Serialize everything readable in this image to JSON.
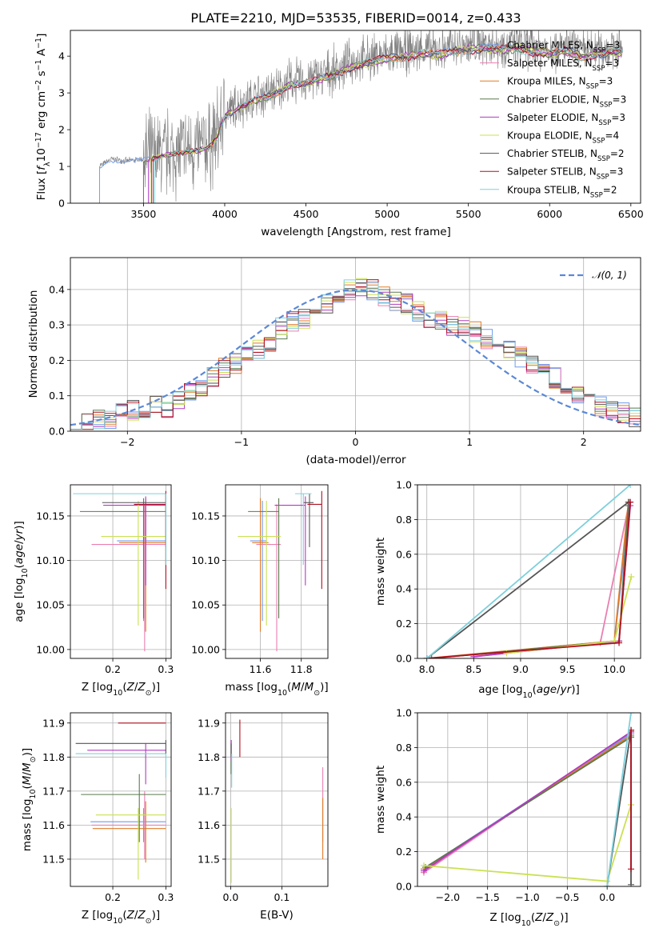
{
  "title": "PLATE=2210, MJD=53535, FIBERID=0014, z=0.433",
  "colors": {
    "Chabrier MILES": "#6f9bef",
    "Salpeter MILES": "#ea7fb0",
    "Kroupa MILES": "#e07b28",
    "Chabrier ELODIE": "#5a7a4e",
    "Salpeter ELODIE": "#b03bc0",
    "Kroupa ELODIE": "#cbe053",
    "Chabrier STELIB": "#555555",
    "Salpeter STELIB": "#b01020",
    "Kroupa STELIB": "#7dd0dc",
    "data": "#808080",
    "normal": "#5b88d6"
  },
  "chart_data": [
    {
      "id": "spectrum",
      "type": "line",
      "xlabel": "wavelength [Angstrom, rest frame]",
      "ylabel": "Flux [f_λ 10^-17 erg cm^-2 s^-1 A^-1]",
      "xlim": [
        3050,
        6560
      ],
      "ylim": [
        0,
        4.7
      ],
      "xticks": [
        3500,
        4000,
        4500,
        5000,
        5500,
        6000,
        6500
      ],
      "yticks": [
        0,
        1,
        2,
        3,
        4
      ],
      "legend_position": "upper right",
      "legend": [
        {
          "name": "Chabrier MILES",
          "nssp": "3"
        },
        {
          "name": "Salpeter MILES",
          "nssp": "3"
        },
        {
          "name": "Kroupa MILES",
          "nssp": "3"
        },
        {
          "name": "Chabrier ELODIE",
          "nssp": "3"
        },
        {
          "name": "Salpeter ELODIE",
          "nssp": "3"
        },
        {
          "name": "Kroupa ELODIE",
          "nssp": "4"
        },
        {
          "name": "Chabrier STELIB",
          "nssp": "2"
        },
        {
          "name": "Salpeter STELIB",
          "nssp": "3"
        },
        {
          "name": "Kroupa STELIB",
          "nssp": "2"
        }
      ],
      "continuum": {
        "x": [
          3250,
          3300,
          3400,
          3500,
          3600,
          3700,
          3800,
          3900,
          3950,
          4000,
          4100,
          4200,
          4300,
          4400,
          4500,
          4600,
          4700,
          4800,
          4900,
          5000,
          5100,
          5200,
          5300,
          5400,
          5500,
          5600,
          5700,
          5800,
          5900,
          6000,
          6100,
          6200,
          6300,
          6450
        ],
        "y": [
          1.05,
          1.2,
          1.15,
          1.2,
          1.3,
          1.4,
          1.45,
          1.55,
          1.8,
          2.45,
          2.7,
          2.9,
          3.05,
          3.3,
          3.35,
          3.5,
          3.65,
          3.85,
          3.95,
          4.05,
          4.1,
          4.2,
          4.15,
          4.25,
          4.3,
          4.35,
          4.3,
          4.35,
          4.25,
          4.2,
          4.25,
          4.1,
          4.2,
          4.25
        ]
      },
      "data_start_x": [
        3230,
        3500,
        3550,
        3500,
        3530,
        3540,
        3550,
        3560,
        3570
      ]
    },
    {
      "id": "residuals",
      "type": "line",
      "xlabel": "(data-model)/error",
      "ylabel": "Normed distribution",
      "xlim": [
        -2.5,
        2.5
      ],
      "ylim": [
        0,
        0.49
      ],
      "xticks": [
        -2,
        -1,
        0,
        1,
        2
      ],
      "yticks": [
        0.0,
        0.1,
        0.2,
        0.3,
        0.4
      ],
      "legend": "𝒩(0, 1)",
      "bins": 50,
      "histogram_centers": [
        0.025,
        0.02,
        0.03,
        0.035,
        0.05,
        0.06,
        0.055,
        0.07,
        0.06,
        0.09,
        0.105,
        0.13,
        0.15,
        0.18,
        0.19,
        0.21,
        0.23,
        0.25,
        0.29,
        0.31,
        0.32,
        0.34,
        0.36,
        0.38,
        0.4,
        0.41,
        0.4,
        0.38,
        0.37,
        0.36,
        0.34,
        0.32,
        0.31,
        0.3,
        0.3,
        0.28,
        0.26,
        0.25,
        0.23,
        0.21,
        0.19,
        0.17,
        0.15,
        0.12,
        0.1,
        0.08,
        0.07,
        0.06,
        0.05,
        0.04
      ]
    },
    {
      "id": "age_vs_Z",
      "type": "scatter",
      "xlabel": "Z [log10(Z/Z⊙)]",
      "ylabel": "age  [log10(age/yr)]",
      "xlim": [
        0.12,
        0.31
      ],
      "ylim": [
        9.99,
        10.185
      ],
      "xticks": [
        0.2,
        0.3
      ],
      "yticks": [
        10.0,
        10.05,
        10.1,
        10.15
      ],
      "points": [
        {
          "s": "Chabrier MILES",
          "x": 0.258,
          "y": 10.122,
          "xerr": [
            0.05,
            0.042
          ],
          "yerr": [
            0.09,
            0.045
          ]
        },
        {
          "s": "Salpeter MILES",
          "x": 0.26,
          "y": 10.118,
          "xerr": [
            0.1,
            0.04
          ],
          "yerr": [
            0.12,
            0.045
          ]
        },
        {
          "s": "Kroupa MILES",
          "x": 0.262,
          "y": 10.12,
          "xerr": [
            0.05,
            0.038
          ],
          "yerr": [
            0.1,
            0.05
          ]
        },
        {
          "s": "Chabrier ELODIE",
          "x": 0.258,
          "y": 10.155,
          "xerr": [
            0.12,
            0.042
          ],
          "yerr": [
            0.12,
            0.015
          ]
        },
        {
          "s": "Salpeter ELODIE",
          "x": 0.262,
          "y": 10.162,
          "xerr": [
            0.08,
            0.038
          ],
          "yerr": [
            0.09,
            0.01
          ]
        },
        {
          "s": "Kroupa ELODIE",
          "x": 0.248,
          "y": 10.127,
          "xerr": [
            0.07,
            0.052
          ],
          "yerr": [
            0.1,
            0.04
          ]
        },
        {
          "s": "Chabrier STELIB",
          "x": 0.3,
          "y": 10.165,
          "xerr": [
            0.12,
            0.0
          ],
          "yerr": [
            0.05,
            0.01
          ]
        },
        {
          "s": "Salpeter STELIB",
          "x": 0.3,
          "y": 10.163,
          "xerr": [
            0.06,
            0.0
          ],
          "yerr": [
            0.095,
            0.015
          ]
        },
        {
          "s": "Kroupa STELIB",
          "x": 0.3,
          "y": 10.175,
          "xerr": [
            0.175,
            0.0
          ],
          "yerr": [
            0.08,
            0.0
          ]
        }
      ]
    },
    {
      "id": "age_vs_mass",
      "type": "scatter",
      "xlabel": "mass [log10(M/M⊙)]",
      "ylabel": "",
      "xlim": [
        11.43,
        11.93
      ],
      "ylim": [
        9.99,
        10.185
      ],
      "xticks": [
        11.6,
        11.8
      ],
      "yticks": [
        10.0,
        10.05,
        10.1,
        10.15
      ],
      "points": [
        {
          "s": "Chabrier MILES",
          "x": 11.61,
          "y": 10.122,
          "xerr": [
            0.06,
            0.02
          ],
          "yerr": [
            0.09,
            0.045
          ]
        },
        {
          "s": "Salpeter MILES",
          "x": 11.68,
          "y": 10.118,
          "xerr": [
            0.1,
            0.02
          ],
          "yerr": [
            0.12,
            0.045
          ]
        },
        {
          "s": "Kroupa MILES",
          "x": 11.6,
          "y": 10.12,
          "xerr": [
            0.04,
            0.04
          ],
          "yerr": [
            0.1,
            0.05
          ]
        },
        {
          "s": "Chabrier ELODIE",
          "x": 11.69,
          "y": 10.155,
          "xerr": [
            0.15,
            0.0
          ],
          "yerr": [
            0.12,
            0.015
          ]
        },
        {
          "s": "Salpeter ELODIE",
          "x": 11.82,
          "y": 10.162,
          "xerr": [
            0.15,
            0.0
          ],
          "yerr": [
            0.09,
            0.01
          ]
        },
        {
          "s": "Kroupa ELODIE",
          "x": 11.63,
          "y": 10.127,
          "xerr": [
            0.14,
            0.07
          ],
          "yerr": [
            0.1,
            0.04
          ]
        },
        {
          "s": "Chabrier STELIB",
          "x": 11.84,
          "y": 10.165,
          "xerr": [
            0.03,
            0.02
          ],
          "yerr": [
            0.05,
            0.01
          ]
        },
        {
          "s": "Salpeter STELIB",
          "x": 11.9,
          "y": 10.163,
          "xerr": [
            0.07,
            0.0
          ],
          "yerr": [
            0.095,
            0.015
          ]
        },
        {
          "s": "Kroupa STELIB",
          "x": 11.81,
          "y": 10.175,
          "xerr": [
            0.04,
            0.04
          ],
          "yerr": [
            0.08,
            0.0
          ]
        }
      ]
    },
    {
      "id": "massweight_vs_age",
      "type": "line",
      "xlabel": "age  [log10(age/yr)]",
      "ylabel": "mass weight",
      "xlim": [
        7.9,
        10.28
      ],
      "ylim": [
        0,
        1.0
      ],
      "xticks": [
        8.0,
        8.5,
        9.0,
        9.5,
        10.0
      ],
      "yticks": [
        0.0,
        0.2,
        0.4,
        0.6,
        0.8,
        1.0
      ],
      "series": [
        {
          "s": "Chabrier MILES",
          "x": [
            8.05,
            10.0,
            10.17
          ],
          "y": [
            0.0,
            0.1,
            0.9
          ]
        },
        {
          "s": "Salpeter MILES",
          "x": [
            8.5,
            9.85,
            10.16
          ],
          "y": [
            0.01,
            0.09,
            0.9
          ]
        },
        {
          "s": "Kroupa MILES",
          "x": [
            8.0,
            10.0,
            10.15
          ],
          "y": [
            0.0,
            0.1,
            0.9
          ]
        },
        {
          "s": "Chabrier ELODIE",
          "x": [
            8.05,
            10.05,
            10.15
          ],
          "y": [
            0.0,
            0.1,
            0.88
          ]
        },
        {
          "s": "Salpeter ELODIE",
          "x": [
            8.5,
            10.05,
            10.17
          ],
          "y": [
            0.01,
            0.1,
            0.88
          ]
        },
        {
          "s": "Kroupa ELODIE",
          "x": [
            8.85,
            10.0,
            10.18
          ],
          "y": [
            0.03,
            0.1,
            0.47
          ]
        },
        {
          "s": "Chabrier STELIB",
          "x": [
            8.0,
            10.15
          ],
          "y": [
            0.0,
            0.9
          ]
        },
        {
          "s": "Salpeter STELIB",
          "x": [
            8.0,
            10.05,
            10.17
          ],
          "y": [
            0.0,
            0.09,
            0.9
          ]
        },
        {
          "s": "Kroupa STELIB",
          "x": [
            8.0,
            10.17
          ],
          "y": [
            0.0,
            1.0
          ]
        }
      ]
    },
    {
      "id": "mass_vs_Z",
      "type": "scatter",
      "xlabel": "Z [log10(Z/Z⊙)]",
      "ylabel": "mass [log10(M/M⊙)]",
      "xlim": [
        0.12,
        0.31
      ],
      "ylim": [
        11.42,
        11.93
      ],
      "xticks": [
        0.2,
        0.3
      ],
      "yticks": [
        11.5,
        11.6,
        11.7,
        11.8,
        11.9
      ],
      "points": [
        {
          "s": "Chabrier MILES",
          "x": 0.258,
          "y": 11.61,
          "xerr": [
            0.1,
            0.042
          ],
          "yerr": [
            0.06,
            0.04
          ]
        },
        {
          "s": "Salpeter MILES",
          "x": 0.26,
          "y": 11.6,
          "xerr": [
            0.1,
            0.04
          ],
          "yerr": [
            0.1,
            0.1
          ]
        },
        {
          "s": "Kroupa MILES",
          "x": 0.262,
          "y": 11.59,
          "xerr": [
            0.1,
            0.038
          ],
          "yerr": [
            0.1,
            0.08
          ]
        },
        {
          "s": "Chabrier ELODIE",
          "x": 0.25,
          "y": 11.69,
          "xerr": [
            0.11,
            0.05
          ],
          "yerr": [
            0.14,
            0.06
          ]
        },
        {
          "s": "Salpeter ELODIE",
          "x": 0.262,
          "y": 11.82,
          "xerr": [
            0.11,
            0.038
          ],
          "yerr": [
            0.1,
            0.02
          ]
        },
        {
          "s": "Kroupa ELODIE",
          "x": 0.248,
          "y": 11.63,
          "xerr": [
            0.08,
            0.052
          ],
          "yerr": [
            0.19,
            0.02
          ]
        },
        {
          "s": "Chabrier STELIB",
          "x": 0.3,
          "y": 11.84,
          "xerr": [
            0.17,
            0.0
          ],
          "yerr": [
            0.03,
            0.01
          ]
        },
        {
          "s": "Salpeter STELIB",
          "x": 0.3,
          "y": 11.9,
          "xerr": [
            0.09,
            0.0
          ],
          "yerr": [
            0.0,
            0.0
          ]
        },
        {
          "s": "Kroupa STELIB",
          "x": 0.3,
          "y": 11.81,
          "xerr": [
            0.17,
            0.0
          ],
          "yerr": [
            0.07,
            0.0
          ]
        }
      ]
    },
    {
      "id": "mass_vs_EBV",
      "type": "scatter",
      "xlabel": "E(B-V)",
      "ylabel": "",
      "xlim": [
        -0.01,
        0.19
      ],
      "ylim": [
        11.42,
        11.93
      ],
      "xticks": [
        0.0,
        0.1
      ],
      "yticks": [
        11.5,
        11.6,
        11.7,
        11.8,
        11.9
      ],
      "points": [
        {
          "s": "Chabrier MILES",
          "x": 0.001,
          "y": 11.8,
          "xerr": [
            0.0,
            0.0
          ],
          "yerr": [
            0.04,
            0.05
          ]
        },
        {
          "s": "Salpeter MILES",
          "x": 0.18,
          "y": 11.65,
          "xerr": [
            0.0,
            0.0
          ],
          "yerr": [
            0.1,
            0.12
          ]
        },
        {
          "s": "Kroupa MILES",
          "x": 0.18,
          "y": 11.6,
          "xerr": [
            0.0,
            0.0
          ],
          "yerr": [
            0.1,
            0.08
          ]
        },
        {
          "s": "Chabrier ELODIE",
          "x": 0.001,
          "y": 11.8,
          "xerr": [
            0.0,
            0.0
          ],
          "yerr": [
            0.05,
            0.05
          ]
        },
        {
          "s": "Salpeter ELODIE",
          "x": 0.001,
          "y": 11.82,
          "xerr": [
            0.0,
            0.0
          ],
          "yerr": [
            0.03,
            0.03
          ]
        },
        {
          "s": "Kroupa ELODIE",
          "x": 0.001,
          "y": 11.6,
          "xerr": [
            0.0,
            0.0
          ],
          "yerr": [
            0.17,
            0.05
          ]
        },
        {
          "s": "Chabrier STELIB",
          "x": 0.001,
          "y": 11.82,
          "xerr": [
            0.0,
            0.0
          ],
          "yerr": [
            0.02,
            0.02
          ]
        },
        {
          "s": "Salpeter STELIB",
          "x": 0.018,
          "y": 11.85,
          "xerr": [
            0.0,
            0.0
          ],
          "yerr": [
            0.05,
            0.06
          ]
        },
        {
          "s": "Kroupa STELIB",
          "x": 0.002,
          "y": 11.76,
          "xerr": [
            0.0,
            0.0
          ],
          "yerr": [
            0.05,
            0.05
          ]
        }
      ]
    },
    {
      "id": "massweight_vs_Z",
      "type": "line",
      "xlabel": "Z [log10(Z/Z⊙)]",
      "ylabel": "mass weight",
      "xlim": [
        -2.38,
        0.42
      ],
      "ylim": [
        0,
        1.0
      ],
      "xticks": [
        -2.0,
        -1.5,
        -1.0,
        -0.5,
        0.0
      ],
      "yticks": [
        0.0,
        0.2,
        0.4,
        0.6,
        0.8,
        1.0
      ],
      "series": [
        {
          "s": "Chabrier MILES",
          "x": [
            -2.3,
            0.3
          ],
          "y": [
            0.1,
            0.88
          ]
        },
        {
          "s": "Salpeter MILES",
          "x": [
            -2.3,
            0.3
          ],
          "y": [
            0.08,
            0.89
          ]
        },
        {
          "s": "Kroupa MILES",
          "x": [
            -2.3,
            0.3
          ],
          "y": [
            0.1,
            0.87
          ]
        },
        {
          "s": "Chabrier ELODIE",
          "x": [
            -2.28,
            0.3
          ],
          "y": [
            0.11,
            0.86
          ]
        },
        {
          "s": "Salpeter ELODIE",
          "x": [
            -2.3,
            0.3
          ],
          "y": [
            0.09,
            0.89
          ]
        },
        {
          "s": "Kroupa ELODIE",
          "x": [
            -2.3,
            0.0,
            0.3
          ],
          "y": [
            0.12,
            0.03,
            0.47
          ]
        },
        {
          "s": "Chabrier STELIB",
          "x": [
            0.0,
            0.3,
            0.3
          ],
          "y": [
            0.0,
            0.9,
            0.01
          ]
        },
        {
          "s": "Salpeter STELIB",
          "x": [
            0.3,
            0.3
          ],
          "y": [
            0.1,
            0.9
          ]
        },
        {
          "s": "Kroupa STELIB",
          "x": [
            0.0,
            0.3
          ],
          "y": [
            0.0,
            1.0
          ]
        }
      ]
    }
  ]
}
